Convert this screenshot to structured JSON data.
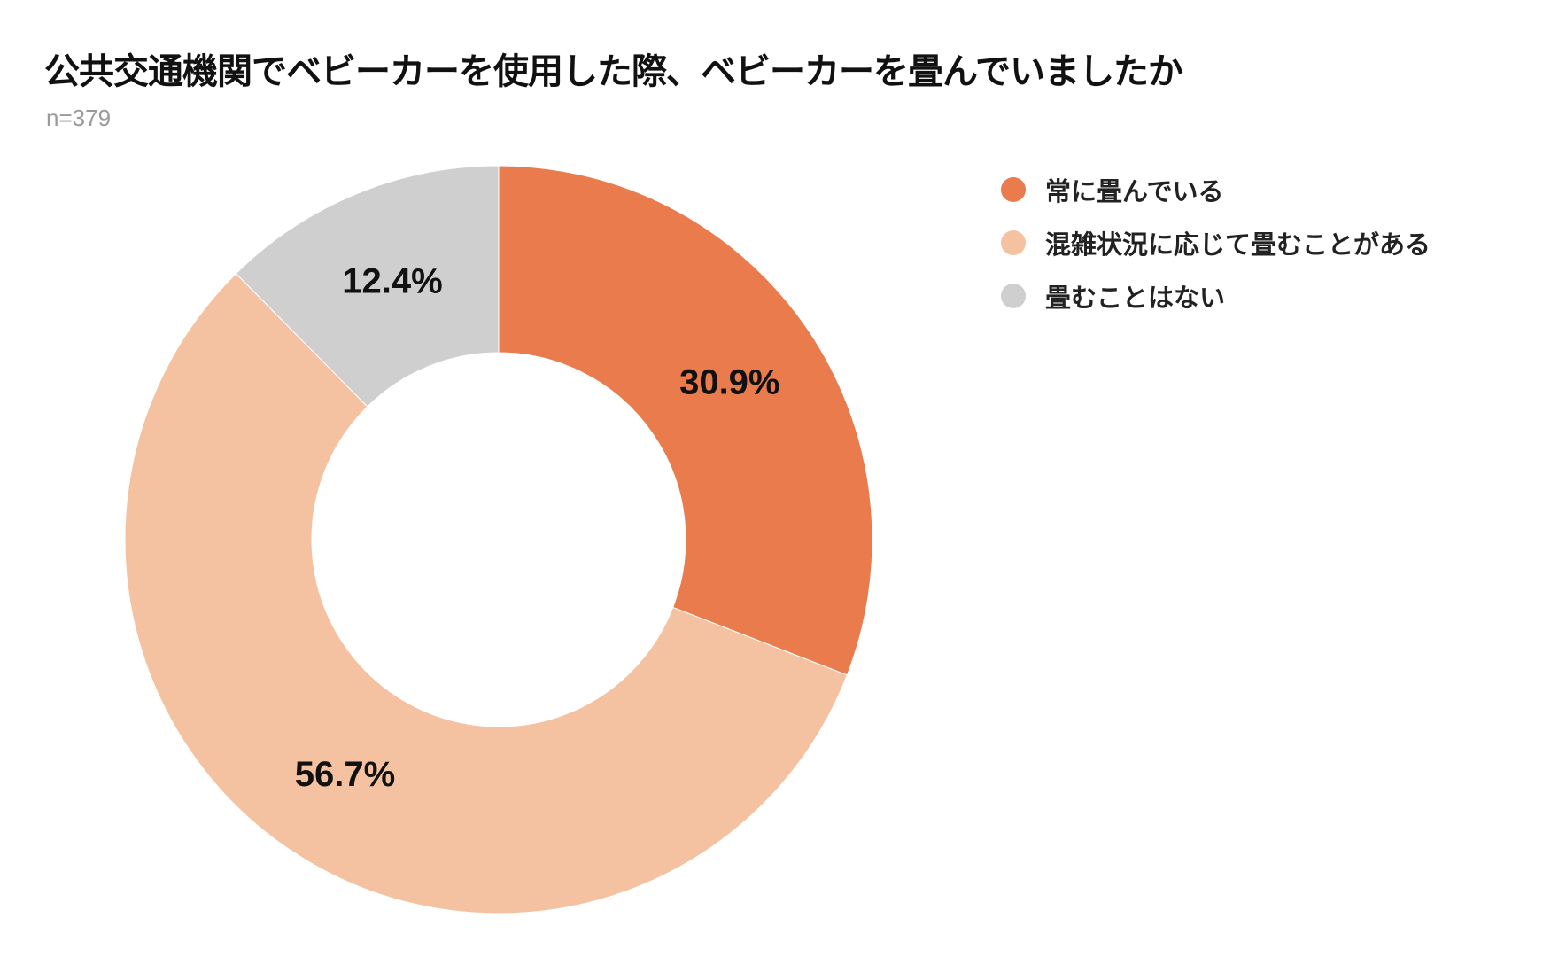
{
  "chart_data": {
    "type": "pie",
    "variant": "donut",
    "title": "公共交通機関でベビーカーを使用した際、ベビーカーを畳んでいましたか",
    "subtitle": "n=379",
    "legend_position": "top-right",
    "slices": [
      {
        "label": "常に畳んでいる",
        "value": 30.9,
        "display": "30.9%",
        "color": "#E97B4D"
      },
      {
        "label": "混雑状況に応じて畳むことがある",
        "value": 56.7,
        "display": "56.7%",
        "color": "#F4C2A1"
      },
      {
        "label": "畳むことはない",
        "value": 12.4,
        "display": "12.4%",
        "color": "#CFCFCF"
      }
    ]
  }
}
